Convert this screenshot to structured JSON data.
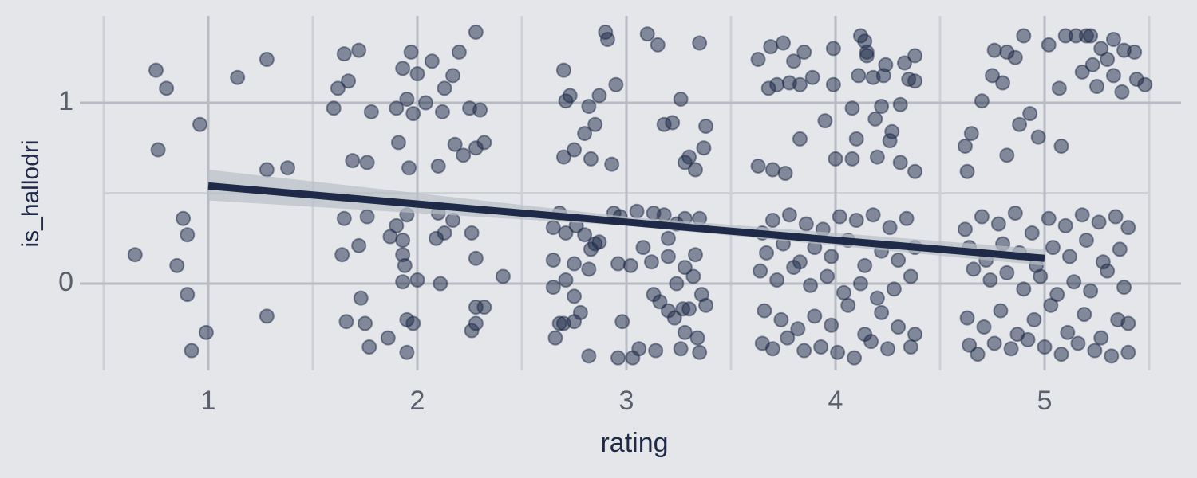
{
  "chart_data": {
    "type": "scatter",
    "x_label": "rating",
    "y_label": "is_hallodri",
    "xlim": [
      0.5,
      5.5
    ],
    "ylim": [
      -0.48,
      1.48
    ],
    "xticks": [
      1,
      2,
      3,
      4,
      5
    ],
    "yticks": [
      0,
      1
    ],
    "x_minor_ticks": [
      0.5,
      1.5,
      2.5,
      3.5,
      4.5,
      5.5
    ],
    "y_minor_ticks": [
      0.5
    ],
    "grid": true,
    "color": "#1e2a47",
    "fit_color": "#1e2a47",
    "band_color": "#b9bfc6",
    "x": [
      0.75,
      0.8,
      0.96,
      0.76,
      1.14,
      1.28,
      1.28,
      1.38,
      0.88,
      0.9,
      0.85,
      0.65,
      0.9,
      0.99,
      0.92,
      1.28,
      1.65,
      1.72,
      1.62,
      1.67,
      1.6,
      1.78,
      1.9,
      1.95,
      1.98,
      2.0,
      2.07,
      1.97,
      1.93,
      2.13,
      2.17,
      2.2,
      2.28,
      2.25,
      2.3,
      2.12,
      2.04,
      1.91,
      1.96,
      2.1,
      2.18,
      2.22,
      2.28,
      2.32,
      1.69,
      1.76,
      1.65,
      1.76,
      1.9,
      1.87,
      1.93,
      1.93,
      1.94,
      1.95,
      2.1,
      2.13,
      2.17,
      2.09,
      2.26,
      2.28,
      1.64,
      1.72,
      1.93,
      2.0,
      2.11,
      2.41,
      1.73,
      1.66,
      1.75,
      1.77,
      1.86,
      1.95,
      1.98,
      1.95,
      2.28,
      2.32,
      2.28,
      2.26,
      2.9,
      2.91,
      3.1,
      3.15,
      3.35,
      2.7,
      2.73,
      2.71,
      2.82,
      2.87,
      2.95,
      2.85,
      2.8,
      2.75,
      2.7,
      2.83,
      2.93,
      3.18,
      3.22,
      3.26,
      3.38,
      3.37,
      3.3,
      3.28,
      3.33,
      2.68,
      2.65,
      2.71,
      2.76,
      2.8,
      2.85,
      2.87,
      2.83,
      2.75,
      2.65,
      2.82,
      2.94,
      2.97,
      3.05,
      3.13,
      3.08,
      3.12,
      3.2,
      3.2,
      3.24,
      3.28,
      3.35,
      3.18,
      3.33,
      3.28,
      3.24,
      3.32,
      2.96,
      3.02,
      2.65,
      2.71,
      2.75,
      2.68,
      2.7,
      2.66,
      2.75,
      2.78,
      2.82,
      2.96,
      3.03,
      3.06,
      3.13,
      3.16,
      3.2,
      3.23,
      3.27,
      3.3,
      3.36,
      3.38,
      3.28,
      3.34,
      3.26,
      3.35,
      3.14,
      2.98,
      3.63,
      3.69,
      3.75,
      3.8,
      3.85,
      3.99,
      4.12,
      4.14,
      4.15,
      4.15,
      4.24,
      4.33,
      4.38,
      3.68,
      3.72,
      3.78,
      3.83,
      3.89,
      3.99,
      4.11,
      4.18,
      4.23,
      4.35,
      4.38,
      4.22,
      4.19,
      4.31,
      4.27,
      4.26,
      4.08,
      3.95,
      3.83,
      4.1,
      4.0,
      4.08,
      4.2,
      4.31,
      4.38,
      3.63,
      3.7,
      3.76,
      3.65,
      3.7,
      3.78,
      3.86,
      3.94,
      4.02,
      4.1,
      4.18,
      4.26,
      4.34,
      3.67,
      3.75,
      3.83,
      3.9,
      3.98,
      4.06,
      4.14,
      4.22,
      4.3,
      4.38,
      3.64,
      3.72,
      3.8,
      3.88,
      3.96,
      4.04,
      4.12,
      4.2,
      4.28,
      4.36,
      3.66,
      3.74,
      3.82,
      3.9,
      3.98,
      4.06,
      4.14,
      4.22,
      4.3,
      4.38,
      3.65,
      3.7,
      3.77,
      3.85,
      3.93,
      4.01,
      4.09,
      4.17,
      4.25,
      4.36,
      4.62,
      4.63,
      4.65,
      4.7,
      4.75,
      4.76,
      4.8,
      4.86,
      4.9,
      4.82,
      4.88,
      4.93,
      4.97,
      4.82,
      5.02,
      5.07,
      5.08,
      5.1,
      5.15,
      5.2,
      5.18,
      5.23,
      5.27,
      5.3,
      5.33,
      5.22,
      5.25,
      5.33,
      5.37,
      5.38,
      5.43,
      5.44,
      5.48,
      4.62,
      4.7,
      4.78,
      4.86,
      4.94,
      5.02,
      5.1,
      5.18,
      5.26,
      5.34,
      5.4,
      4.64,
      4.72,
      4.8,
      4.88,
      4.96,
      5.04,
      5.12,
      5.2,
      5.28,
      5.36,
      4.66,
      4.74,
      4.82,
      4.9,
      4.98,
      5.06,
      5.14,
      5.22,
      5.3,
      5.38,
      4.63,
      4.71,
      4.79,
      4.87,
      4.95,
      5.03,
      5.11,
      5.19,
      5.27,
      5.35,
      5.4,
      4.64,
      4.68,
      4.76,
      4.84,
      4.92,
      5.0,
      5.08,
      5.16,
      5.24,
      5.32,
      5.4
    ],
    "y": [
      1.18,
      1.08,
      0.88,
      0.74,
      1.14,
      1.24,
      0.63,
      0.64,
      0.36,
      0.27,
      0.1,
      0.16,
      -0.06,
      -0.27,
      -0.37,
      -0.18,
      1.27,
      1.29,
      1.08,
      1.12,
      0.97,
      0.95,
      0.97,
      1.02,
      0.94,
      1.16,
      1.23,
      1.28,
      1.19,
      1.08,
      1.15,
      1.28,
      1.39,
      0.97,
      0.96,
      0.95,
      1.0,
      0.78,
      0.64,
      0.65,
      0.77,
      0.71,
      0.75,
      0.78,
      0.68,
      0.67,
      0.36,
      0.37,
      0.32,
      0.26,
      0.24,
      0.16,
      0.1,
      0.38,
      0.39,
      0.28,
      0.35,
      0.25,
      0.28,
      0.14,
      0.16,
      0.21,
      0.01,
      0.02,
      0,
      0.04,
      -0.08,
      -0.21,
      -0.22,
      -0.35,
      -0.3,
      -0.2,
      -0.22,
      -0.38,
      -0.13,
      -0.13,
      -0.22,
      -0.26,
      1.39,
      1.35,
      1.38,
      1.32,
      1.33,
      1.18,
      1.04,
      1.01,
      0.98,
      1.04,
      1.1,
      0.88,
      0.83,
      0.74,
      0.7,
      0.69,
      0.66,
      0.88,
      0.89,
      1.02,
      0.87,
      0.75,
      0.7,
      0.67,
      0.63,
      0.39,
      0.31,
      0.28,
      0.32,
      0.27,
      0.22,
      0.23,
      0.19,
      0.11,
      0.13,
      0.08,
      0.39,
      0.37,
      0.4,
      0.39,
      0.2,
      0.12,
      0.15,
      0.25,
      0.33,
      0.36,
      0.36,
      0.38,
      0.16,
      0.09,
      0.0,
      0.04,
      0.11,
      0.1,
      -0.02,
      0.02,
      -0.07,
      -0.22,
      -0.22,
      -0.3,
      -0.21,
      -0.16,
      -0.4,
      -0.41,
      -0.41,
      -0.36,
      -0.06,
      -0.1,
      -0.15,
      -0.19,
      -0.14,
      -0.14,
      -0.06,
      -0.12,
      -0.27,
      -0.3,
      -0.36,
      -0.38,
      -0.37,
      -0.21,
      1.24,
      1.31,
      1.33,
      1.23,
      1.28,
      1.3,
      1.37,
      1.34,
      1.28,
      1.26,
      1.21,
      1.22,
      1.26,
      1.08,
      1.1,
      1.11,
      1.1,
      1.14,
      1.1,
      1.15,
      1.14,
      1.15,
      1.13,
      1.12,
      0.98,
      0.91,
      0.99,
      0.84,
      0.79,
      0.97,
      0.9,
      0.8,
      0.8,
      0.69,
      0.69,
      0.7,
      0.67,
      0.62,
      0.65,
      0.63,
      0.61,
      0.28,
      0.35,
      0.38,
      0.33,
      0.3,
      0.37,
      0.35,
      0.38,
      0.31,
      0.36,
      0.17,
      0.22,
      0.12,
      0.2,
      0.15,
      0.24,
      0.1,
      0.18,
      0.13,
      0.2,
      0.07,
      0.02,
      0.09,
      -0.01,
      0.04,
      -0.05,
      0.0,
      -0.08,
      -0.03,
      0.04,
      -0.15,
      -0.2,
      -0.25,
      -0.18,
      -0.23,
      -0.12,
      -0.28,
      -0.16,
      -0.24,
      -0.28,
      -0.33,
      -0.36,
      -0.3,
      -0.37,
      -0.35,
      -0.38,
      -0.41,
      -0.32,
      -0.36,
      -0.35,
      0.76,
      0.62,
      0.83,
      1.01,
      1.15,
      1.29,
      1.11,
      1.25,
      1.37,
      1.28,
      0.88,
      0.94,
      0.81,
      0.71,
      1.32,
      1.08,
      0.76,
      1.37,
      1.37,
      1.37,
      1.17,
      1.21,
      1.3,
      1.24,
      1.35,
      1.37,
      1.09,
      1.15,
      1.06,
      1.29,
      1.28,
      1.13,
      1.1,
      0.3,
      0.37,
      0.33,
      0.39,
      0.28,
      0.36,
      0.32,
      0.38,
      0.34,
      0.37,
      0.31,
      0.2,
      0.13,
      0.22,
      0.17,
      0.1,
      0.2,
      0.15,
      0.24,
      0.12,
      0.19,
      0.08,
      0.02,
      0.06,
      -0.03,
      0.04,
      -0.06,
      0.01,
      -0.04,
      0.07,
      -0.02,
      -0.19,
      -0.24,
      -0.15,
      -0.28,
      -0.2,
      -0.12,
      -0.27,
      -0.17,
      -0.3,
      -0.2,
      -0.22,
      -0.34,
      -0.39,
      -0.33,
      -0.36,
      -0.31,
      -0.35,
      -0.39,
      -0.33,
      -0.37,
      -0.4,
      -0.38
    ],
    "fit_x": [
      1,
      3,
      5
    ],
    "fit_y": [
      0.54,
      0.34,
      0.14
    ],
    "fit_lower": [
      0.46,
      0.32,
      0.1
    ],
    "fit_upper": [
      0.63,
      0.37,
      0.19
    ]
  }
}
